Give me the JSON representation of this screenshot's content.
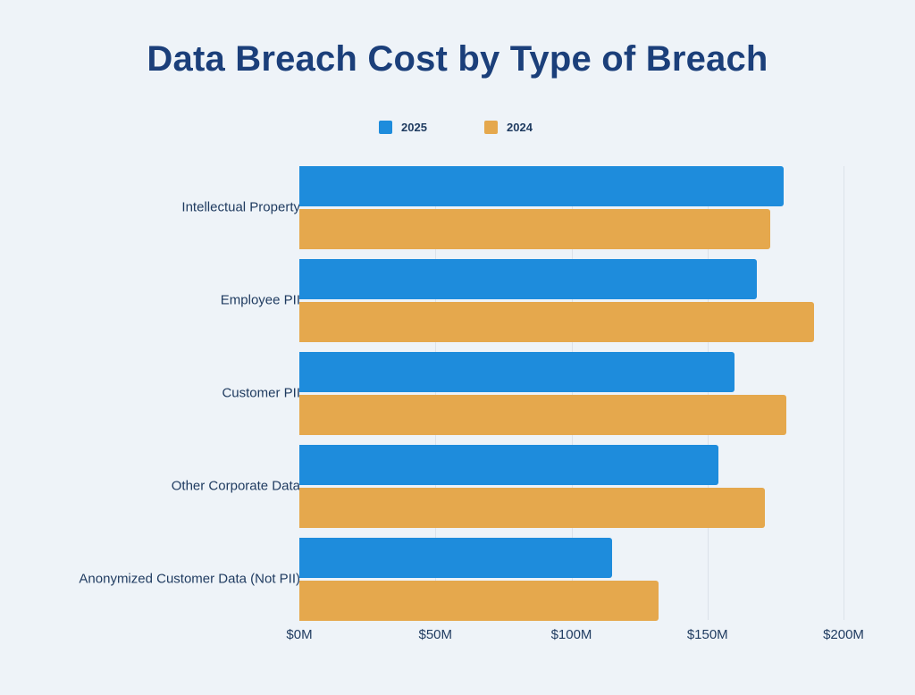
{
  "title": "Data Breach Cost by Type of Breach",
  "legend": [
    {
      "label": "2025",
      "color": "#1E8CDC"
    },
    {
      "label": "2024",
      "color": "#E5A84D"
    }
  ],
  "x_ticks": [
    "$0M",
    "$50M",
    "$100M",
    "$150M",
    "$200M"
  ],
  "chart_data": {
    "type": "bar",
    "orientation": "horizontal",
    "title": "Data Breach Cost by Type of Breach",
    "xlabel": "",
    "ylabel": "",
    "categories": [
      "Intellectual Property",
      "Employee PII",
      "Customer PII",
      "Other Corporate Data",
      "Anonymized Customer Data (Not PII)"
    ],
    "series": [
      {
        "name": "2025",
        "color": "#1E8CDC",
        "values": [
          178,
          168,
          160,
          154,
          115
        ]
      },
      {
        "name": "2024",
        "color": "#E5A84D",
        "values": [
          173,
          189,
          179,
          171,
          132
        ]
      }
    ],
    "xlim": [
      0,
      200
    ],
    "x_ticks": [
      "$0M",
      "$50M",
      "$100M",
      "$150M",
      "$200M"
    ],
    "unit": "$M",
    "grid": true,
    "legend_position": "top"
  }
}
